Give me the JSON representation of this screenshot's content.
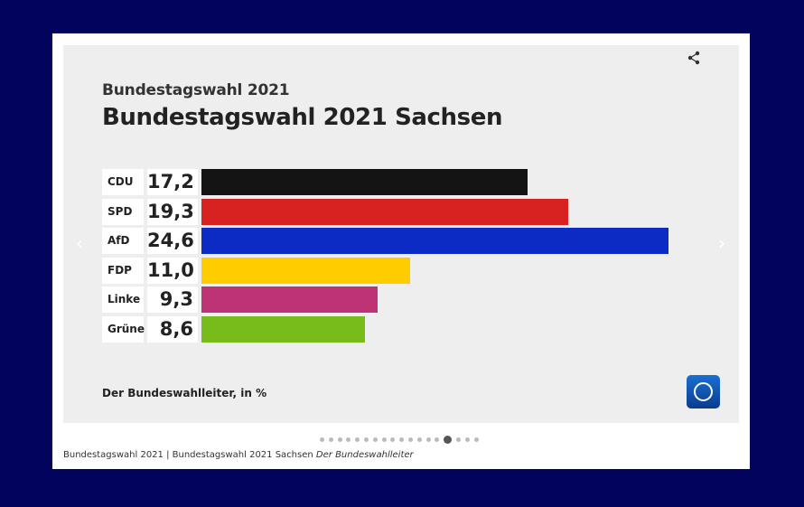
{
  "header": {
    "supertitle": "Bundestagswahl 2021",
    "title": "Bundestagswahl 2021 Sachsen"
  },
  "source": "Der Bundeswahlleiter, in %",
  "caption": {
    "text": "Bundestagswahl 2021 | Bundestagswahl 2021 Sachsen",
    "source": "Der Bundeswahlleiter"
  },
  "navigation": {
    "prev_icon": "chevron-left-icon",
    "next_icon": "chevron-right-icon",
    "prev_glyph": "‹",
    "next_glyph": "›",
    "total_slides": 18,
    "active_slide": 15
  },
  "icons": {
    "share": "share-icon",
    "logo": "tagesschau-logo-icon"
  },
  "chart_data": {
    "type": "bar",
    "orientation": "horizontal",
    "title": "Bundestagswahl 2021 Sachsen",
    "subtitle": "Bundestagswahl 2021",
    "xlabel": "",
    "ylabel": "",
    "unit": "%",
    "xlim": [
      0,
      25
    ],
    "categories": [
      "CDU",
      "SPD",
      "AfD",
      "FDP",
      "Linke",
      "Grüne"
    ],
    "values": [
      17.2,
      19.3,
      24.6,
      11.0,
      9.3,
      8.6
    ],
    "value_labels": [
      "17,2",
      "19,3",
      "24,6",
      "11,0",
      "9,3",
      "8,6"
    ],
    "colors": [
      "#141414",
      "#d82121",
      "#0b2bc4",
      "#ffcc00",
      "#be3375",
      "#78bc1b"
    ],
    "grid": false,
    "legend": "none"
  }
}
